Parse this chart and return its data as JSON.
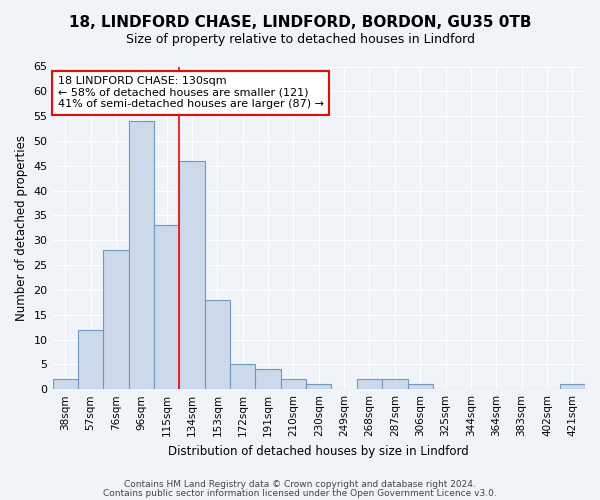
{
  "title1": "18, LINDFORD CHASE, LINDFORD, BORDON, GU35 0TB",
  "title2": "Size of property relative to detached houses in Lindford",
  "xlabel": "Distribution of detached houses by size in Lindford",
  "ylabel": "Number of detached properties",
  "bins": [
    "38sqm",
    "57sqm",
    "76sqm",
    "96sqm",
    "115sqm",
    "134sqm",
    "153sqm",
    "172sqm",
    "191sqm",
    "210sqm",
    "230sqm",
    "249sqm",
    "268sqm",
    "287sqm",
    "306sqm",
    "325sqm",
    "344sqm",
    "364sqm",
    "383sqm",
    "402sqm",
    "421sqm"
  ],
  "values": [
    2,
    12,
    28,
    54,
    33,
    46,
    18,
    5,
    4,
    2,
    1,
    0,
    2,
    2,
    1,
    0,
    0,
    0,
    0,
    0,
    1
  ],
  "bar_color": "#ccd9ea",
  "bar_edge_color": "#7098c0",
  "red_line_bin_index": 5,
  "annotation_line1": "18 LINDFORD CHASE: 130sqm",
  "annotation_line2": "← 58% of detached houses are smaller (121)",
  "annotation_line3": "41% of semi-detached houses are larger (87) →",
  "annotation_box_color": "white",
  "annotation_box_edge": "red",
  "ylim": [
    0,
    65
  ],
  "yticks": [
    0,
    5,
    10,
    15,
    20,
    25,
    30,
    35,
    40,
    45,
    50,
    55,
    60,
    65
  ],
  "footer1": "Contains HM Land Registry data © Crown copyright and database right 2024.",
  "footer2": "Contains public sector information licensed under the Open Government Licence v3.0.",
  "fig_bg_color": "#f0f4f8",
  "plot_bg_color": "#f0f4f8",
  "grid_color": "white",
  "title1_fontsize": 11,
  "title2_fontsize": 9
}
